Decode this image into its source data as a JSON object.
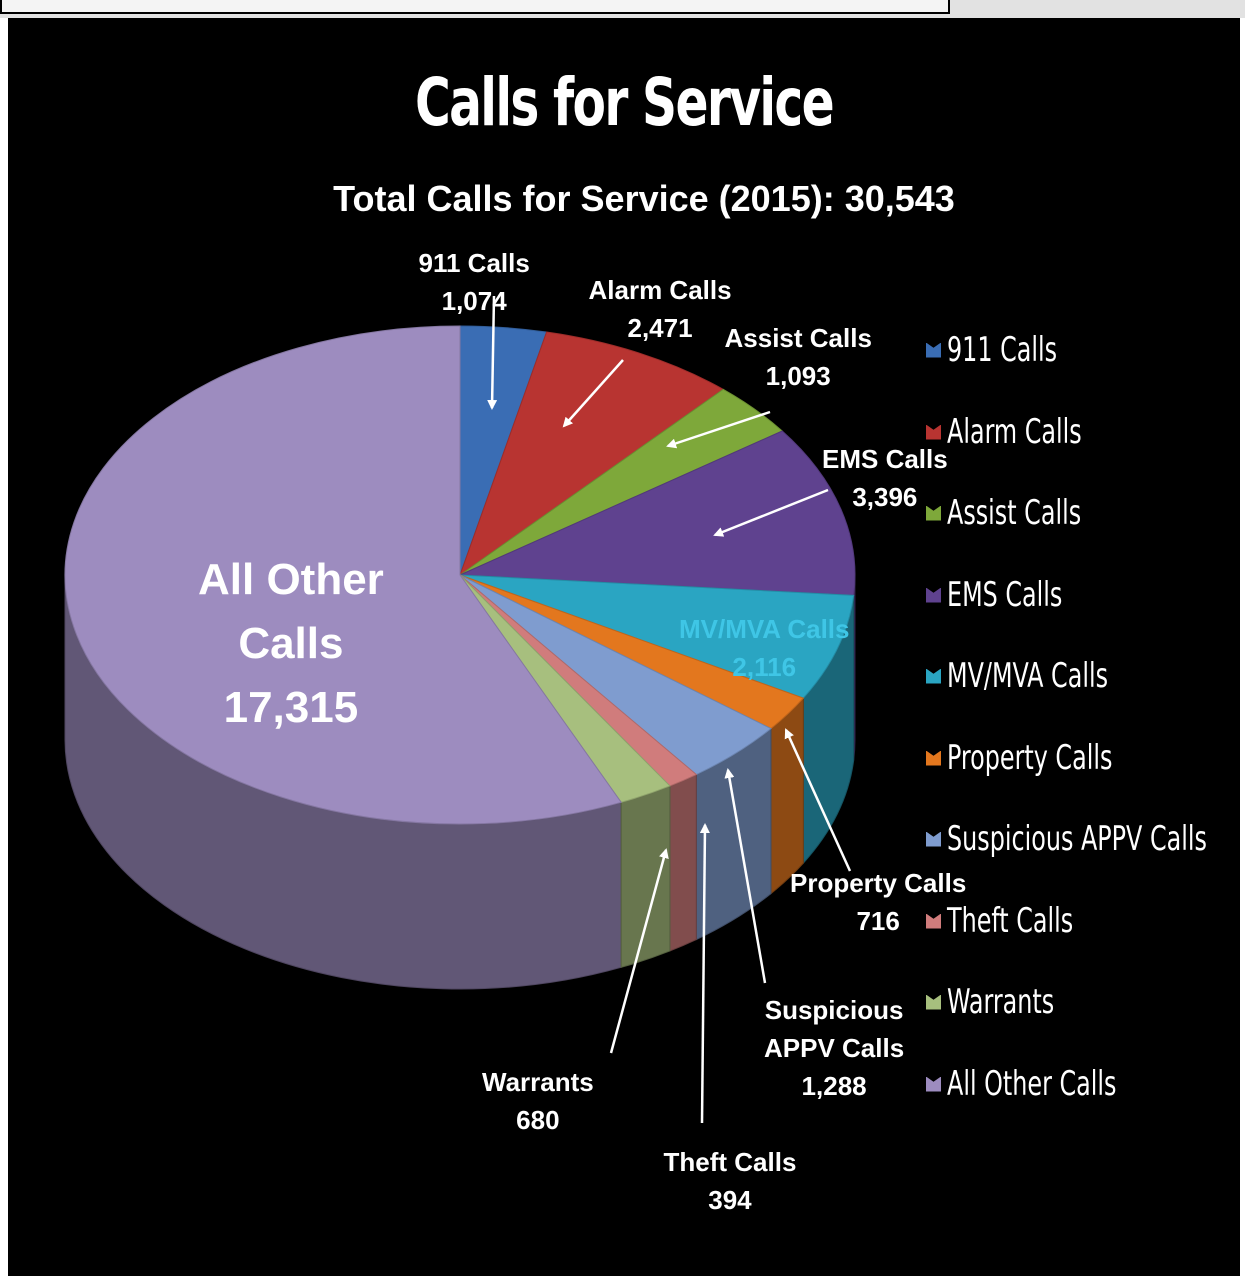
{
  "chart_data": {
    "type": "pie",
    "title": "Calls for Service",
    "subtitle": "Total Calls for Service (2015): 30,543",
    "categories": [
      "911 Calls",
      "Alarm Calls",
      "Assist Calls",
      "EMS Calls",
      "MV/MVA Calls",
      "Property Calls",
      "Suspicious APPV Calls",
      "Theft Calls",
      "Warrants",
      "All Other Calls"
    ],
    "values": [
      1074,
      2471,
      1093,
      3396,
      2116,
      716,
      1288,
      394,
      680,
      17315
    ],
    "labels": [
      {
        "name": "911 Calls",
        "value": "1,074"
      },
      {
        "name": "Alarm Calls",
        "value": "2,471"
      },
      {
        "name": "Assist Calls",
        "value": "1,093"
      },
      {
        "name": "EMS Calls",
        "value": "3,396"
      },
      {
        "name": "MV/MVA Calls",
        "value": "2,116"
      },
      {
        "name": "Property Calls",
        "value": "716"
      },
      {
        "name": "Suspicious APPV Calls",
        "name_line1": "Suspicious",
        "name_line2": "APPV Calls",
        "value": "1,288"
      },
      {
        "name": "Theft Calls",
        "value": "394"
      },
      {
        "name": "Warrants",
        "value": "680"
      },
      {
        "name": "All Other Calls",
        "name_line1": "All Other",
        "name_line2": "Calls",
        "value": "17,315"
      }
    ],
    "colors": [
      "#3a6db4",
      "#b83431",
      "#7ea83a",
      "#5f428f",
      "#2aa5c2",
      "#e3771e",
      "#7f9ccf",
      "#d07c7c",
      "#a7bf7e",
      "#9d8cbf"
    ],
    "legend": {
      "position": "right",
      "entries": [
        "911 Calls",
        "Alarm Calls",
        "Assist Calls",
        "EMS Calls",
        "MV/MVA Calls",
        "Property Calls",
        "Suspicious APPV Calls",
        "Theft Calls",
        "Warrants",
        "All Other Calls"
      ]
    },
    "style": "3d-pie",
    "background": "#000000"
  }
}
